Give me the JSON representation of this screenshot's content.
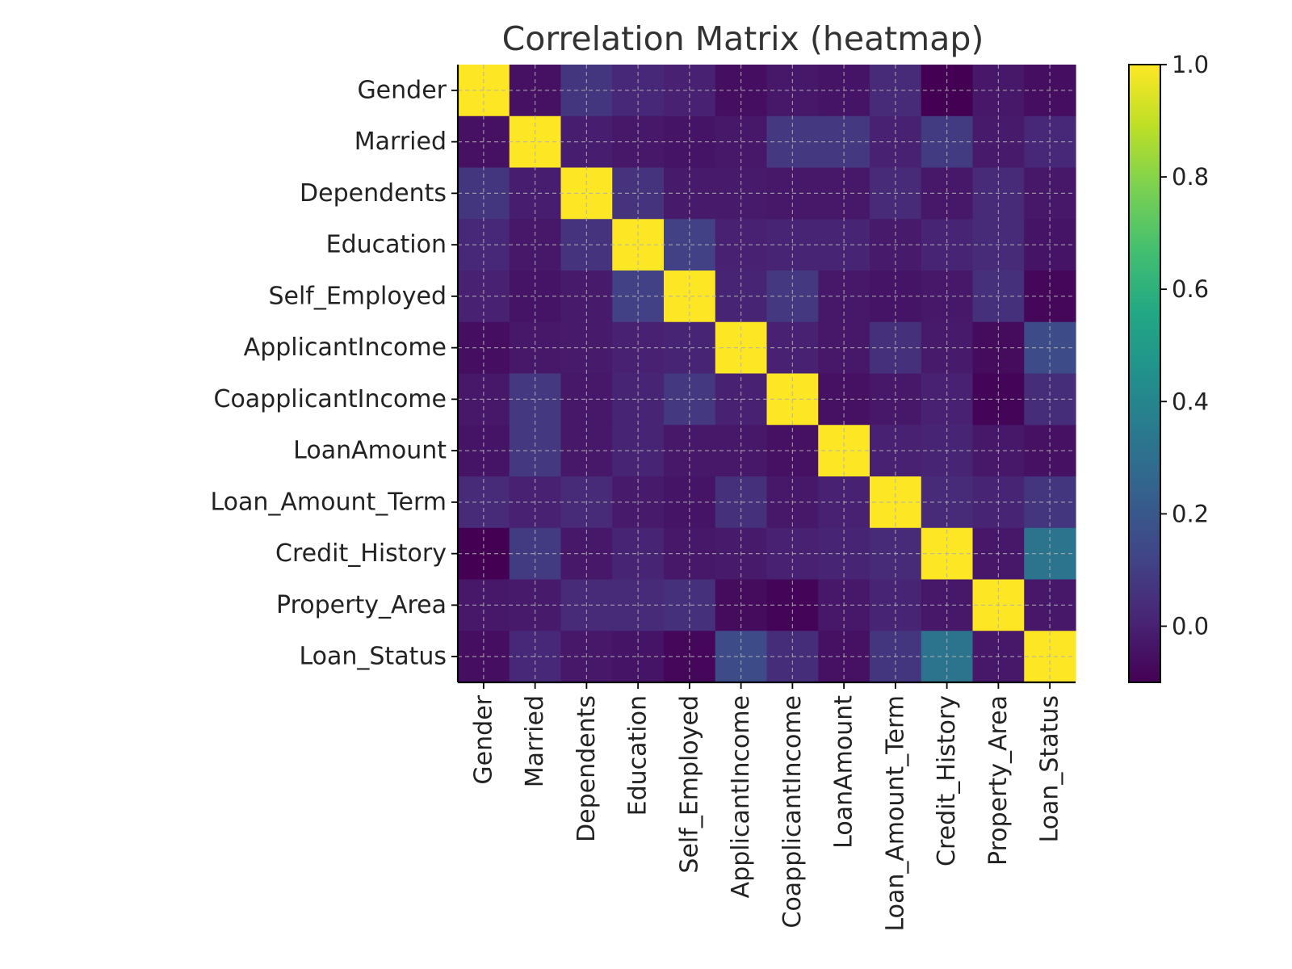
{
  "chart_data": {
    "type": "heatmap",
    "title": "Correlation Matrix (heatmap)",
    "x_labels": [
      "Gender",
      "Married",
      "Dependents",
      "Education",
      "Self_Employed",
      "ApplicantIncome",
      "CoapplicantIncome",
      "LoanAmount",
      "Loan_Amount_Term",
      "Credit_History",
      "Property_Area",
      "Loan_Status"
    ],
    "y_labels": [
      "Gender",
      "Married",
      "Dependents",
      "Education",
      "Self_Employed",
      "ApplicantIncome",
      "CoapplicantIncome",
      "LoanAmount",
      "Loan_Amount_Term",
      "Credit_History",
      "Property_Area",
      "Loan_Status"
    ],
    "values": [
      [
        1.0,
        -0.05,
        0.07,
        0.02,
        0.0,
        -0.06,
        -0.03,
        -0.04,
        0.03,
        -0.1,
        -0.03,
        -0.06
      ],
      [
        -0.05,
        1.0,
        -0.01,
        -0.03,
        -0.04,
        -0.03,
        0.08,
        0.08,
        0.0,
        0.09,
        -0.02,
        0.02
      ],
      [
        0.07,
        -0.01,
        1.0,
        0.06,
        -0.02,
        -0.02,
        -0.03,
        -0.03,
        0.03,
        -0.03,
        0.03,
        -0.03
      ],
      [
        0.02,
        -0.03,
        0.06,
        1.0,
        0.11,
        0.0,
        0.01,
        0.01,
        -0.02,
        0.01,
        0.03,
        -0.04
      ],
      [
        0.0,
        -0.04,
        -0.02,
        0.11,
        1.0,
        0.01,
        0.08,
        -0.03,
        -0.04,
        -0.03,
        0.05,
        -0.08
      ],
      [
        -0.06,
        -0.03,
        -0.02,
        0.0,
        0.01,
        1.0,
        0.0,
        -0.03,
        0.05,
        -0.02,
        -0.07,
        0.15
      ],
      [
        -0.03,
        0.08,
        -0.03,
        0.01,
        0.08,
        0.0,
        1.0,
        -0.05,
        -0.03,
        0.0,
        -0.09,
        0.04
      ],
      [
        -0.04,
        0.08,
        -0.03,
        0.01,
        -0.03,
        -0.03,
        -0.05,
        1.0,
        0.0,
        0.01,
        -0.03,
        -0.05
      ],
      [
        0.03,
        0.0,
        0.03,
        -0.02,
        -0.04,
        0.05,
        -0.03,
        0.0,
        1.0,
        0.03,
        0.01,
        0.07
      ],
      [
        -0.1,
        0.09,
        -0.03,
        0.01,
        -0.03,
        -0.02,
        0.0,
        0.01,
        0.03,
        1.0,
        -0.03,
        0.32
      ],
      [
        -0.03,
        -0.02,
        0.03,
        0.03,
        0.05,
        -0.07,
        -0.09,
        -0.03,
        0.01,
        -0.03,
        1.0,
        -0.03
      ],
      [
        -0.06,
        0.02,
        -0.03,
        -0.04,
        -0.08,
        0.15,
        0.04,
        -0.05,
        0.07,
        0.32,
        -0.03,
        1.0
      ]
    ],
    "colormap": "viridis",
    "colorbar": {
      "vmin": -0.1,
      "vmax": 1.0,
      "ticks": [
        "0.0",
        "0.2",
        "0.4",
        "0.6",
        "0.8",
        "1.0"
      ]
    },
    "grid": true
  }
}
